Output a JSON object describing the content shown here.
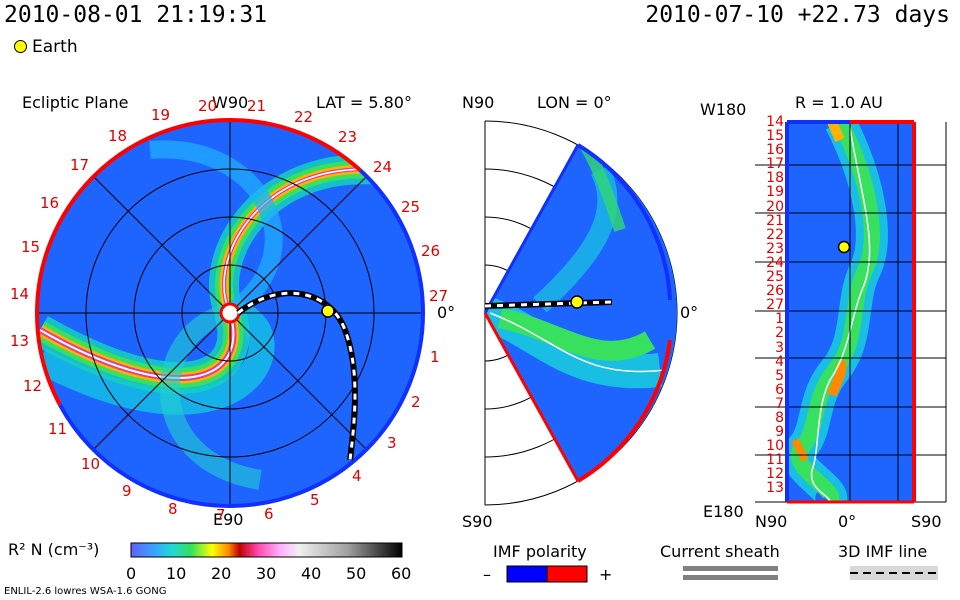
{
  "header": {
    "datetime": "2010-08-01 21:19:31",
    "reference": "2010-07-10 +22.73 days"
  },
  "legend": {
    "earth_label": "Earth",
    "earth_color": "#ffff00"
  },
  "ecliptic": {
    "title": "Ecliptic Plane",
    "top_label": "W90",
    "bottom_label": "E90",
    "right_label": "0°",
    "lat_text": "LAT = 5.80°",
    "sector_labels": [
      "20",
      "21",
      "22",
      "23",
      "24",
      "25",
      "26",
      "27",
      "1",
      "2",
      "3",
      "4",
      "5",
      "6",
      "7",
      "8",
      "9",
      "10",
      "11",
      "12",
      "13",
      "14",
      "15",
      "16",
      "17",
      "18",
      "19"
    ]
  },
  "meridional": {
    "top_label": "N90",
    "bottom_label": "S90",
    "right_label": "0°",
    "lon_text": "LON = 0°"
  },
  "synoptic": {
    "radius_text": "R = 1.0 AU",
    "top_label": "W180",
    "bottom_label": "E180",
    "x_left": "N90",
    "x_mid": "0°",
    "x_right": "S90",
    "sector_labels": [
      "14",
      "15",
      "16",
      "17",
      "18",
      "19",
      "20",
      "21",
      "22",
      "23",
      "24",
      "25",
      "26",
      "27",
      "1",
      "2",
      "3",
      "4",
      "5",
      "6",
      "7",
      "8",
      "9",
      "10",
      "11",
      "12",
      "13"
    ]
  },
  "colorbar": {
    "label": "R² N (cm⁻³)",
    "ticks": [
      "0",
      "10",
      "20",
      "30",
      "40",
      "50",
      "60"
    ]
  },
  "imf": {
    "title": "IMF polarity",
    "minus": "–",
    "plus": "+",
    "neg_color": "#0000ff",
    "pos_color": "#ff0000"
  },
  "sheath": {
    "title": "Current sheath"
  },
  "imf3d": {
    "title": "3D IMF line"
  },
  "footer": {
    "left": "ENLIL-2.6 lowres WSA-1.6 GONG"
  }
}
